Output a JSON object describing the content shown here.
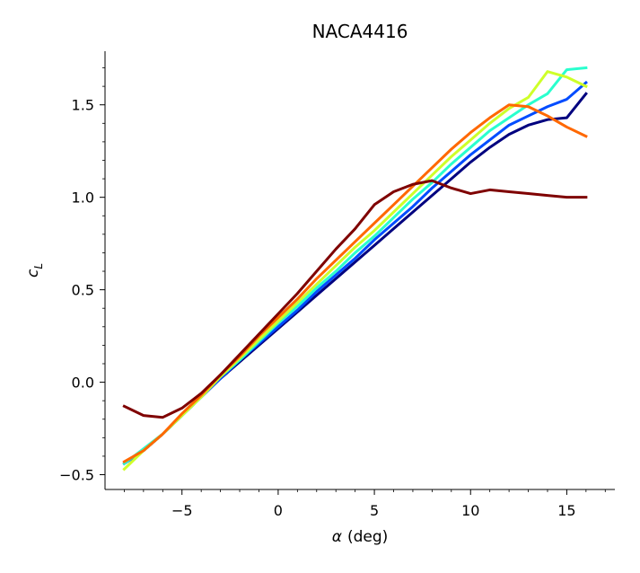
{
  "chart_data": {
    "type": "line",
    "title": "NACA4416",
    "xlabel_symbol": "α",
    "xlabel_rest": "(deg)",
    "ylabel_main": "c",
    "ylabel_sub": "L",
    "xlim": [
      -9,
      17.5
    ],
    "ylim": [
      -0.58,
      1.79
    ],
    "xticks": [
      -5,
      0,
      5,
      10,
      15
    ],
    "xtick_labels": [
      "−5",
      "0",
      "5",
      "10",
      "15"
    ],
    "yticks": [
      -0.5,
      0.0,
      0.5,
      1.0,
      1.5
    ],
    "ytick_labels": [
      "−0.5",
      "0.0",
      "0.5",
      "1.0",
      "1.5"
    ],
    "grid": false,
    "legend": "none",
    "x": [
      -8,
      -7,
      -6,
      -5,
      -4,
      -3,
      -2,
      -1,
      0,
      1,
      2,
      3,
      4,
      5,
      6,
      7,
      8,
      9,
      10,
      11,
      12,
      13,
      14,
      15,
      16
    ],
    "series": [
      {
        "color": "#00007f",
        "values": [
          -0.44,
          -0.37,
          -0.28,
          -0.18,
          -0.08,
          0.02,
          0.11,
          0.2,
          0.29,
          0.38,
          0.47,
          0.56,
          0.65,
          0.74,
          0.83,
          0.92,
          1.01,
          1.1,
          1.19,
          1.27,
          1.34,
          1.39,
          1.42,
          1.43,
          1.56
        ]
      },
      {
        "color": "#004cff",
        "values": [
          -0.44,
          -0.37,
          -0.28,
          -0.18,
          -0.08,
          0.02,
          0.12,
          0.21,
          0.3,
          0.39,
          0.49,
          0.58,
          0.67,
          0.77,
          0.86,
          0.95,
          1.05,
          1.14,
          1.23,
          1.31,
          1.39,
          1.44,
          1.49,
          1.53,
          1.62
        ]
      },
      {
        "color": "#29ffce",
        "values": [
          -0.44,
          -0.36,
          -0.28,
          -0.18,
          -0.08,
          0.03,
          0.12,
          0.22,
          0.32,
          0.41,
          0.51,
          0.6,
          0.7,
          0.79,
          0.89,
          0.99,
          1.08,
          1.18,
          1.27,
          1.36,
          1.43,
          1.5,
          1.56,
          1.69,
          1.7
        ]
      },
      {
        "color": "#ceff29",
        "values": [
          -0.47,
          -0.37,
          -0.28,
          -0.18,
          -0.08,
          0.03,
          0.13,
          0.23,
          0.33,
          0.43,
          0.53,
          0.63,
          0.73,
          0.82,
          0.92,
          1.02,
          1.12,
          1.22,
          1.31,
          1.4,
          1.48,
          1.54,
          1.68,
          1.65,
          1.6
        ]
      },
      {
        "color": "#ff6800",
        "values": [
          -0.43,
          -0.37,
          -0.28,
          -0.17,
          -0.07,
          0.04,
          0.14,
          0.25,
          0.35,
          0.45,
          0.56,
          0.66,
          0.76,
          0.86,
          0.96,
          1.06,
          1.16,
          1.26,
          1.35,
          1.43,
          1.5,
          1.49,
          1.44,
          1.38,
          1.33
        ]
      },
      {
        "color": "#7f0000",
        "values": [
          -0.13,
          -0.18,
          -0.19,
          -0.14,
          -0.06,
          0.04,
          0.15,
          0.26,
          0.37,
          0.48,
          0.6,
          0.72,
          0.83,
          0.96,
          1.03,
          1.07,
          1.09,
          1.05,
          1.02,
          1.04,
          1.03,
          1.02,
          1.01,
          1.0,
          1.0
        ]
      }
    ]
  }
}
